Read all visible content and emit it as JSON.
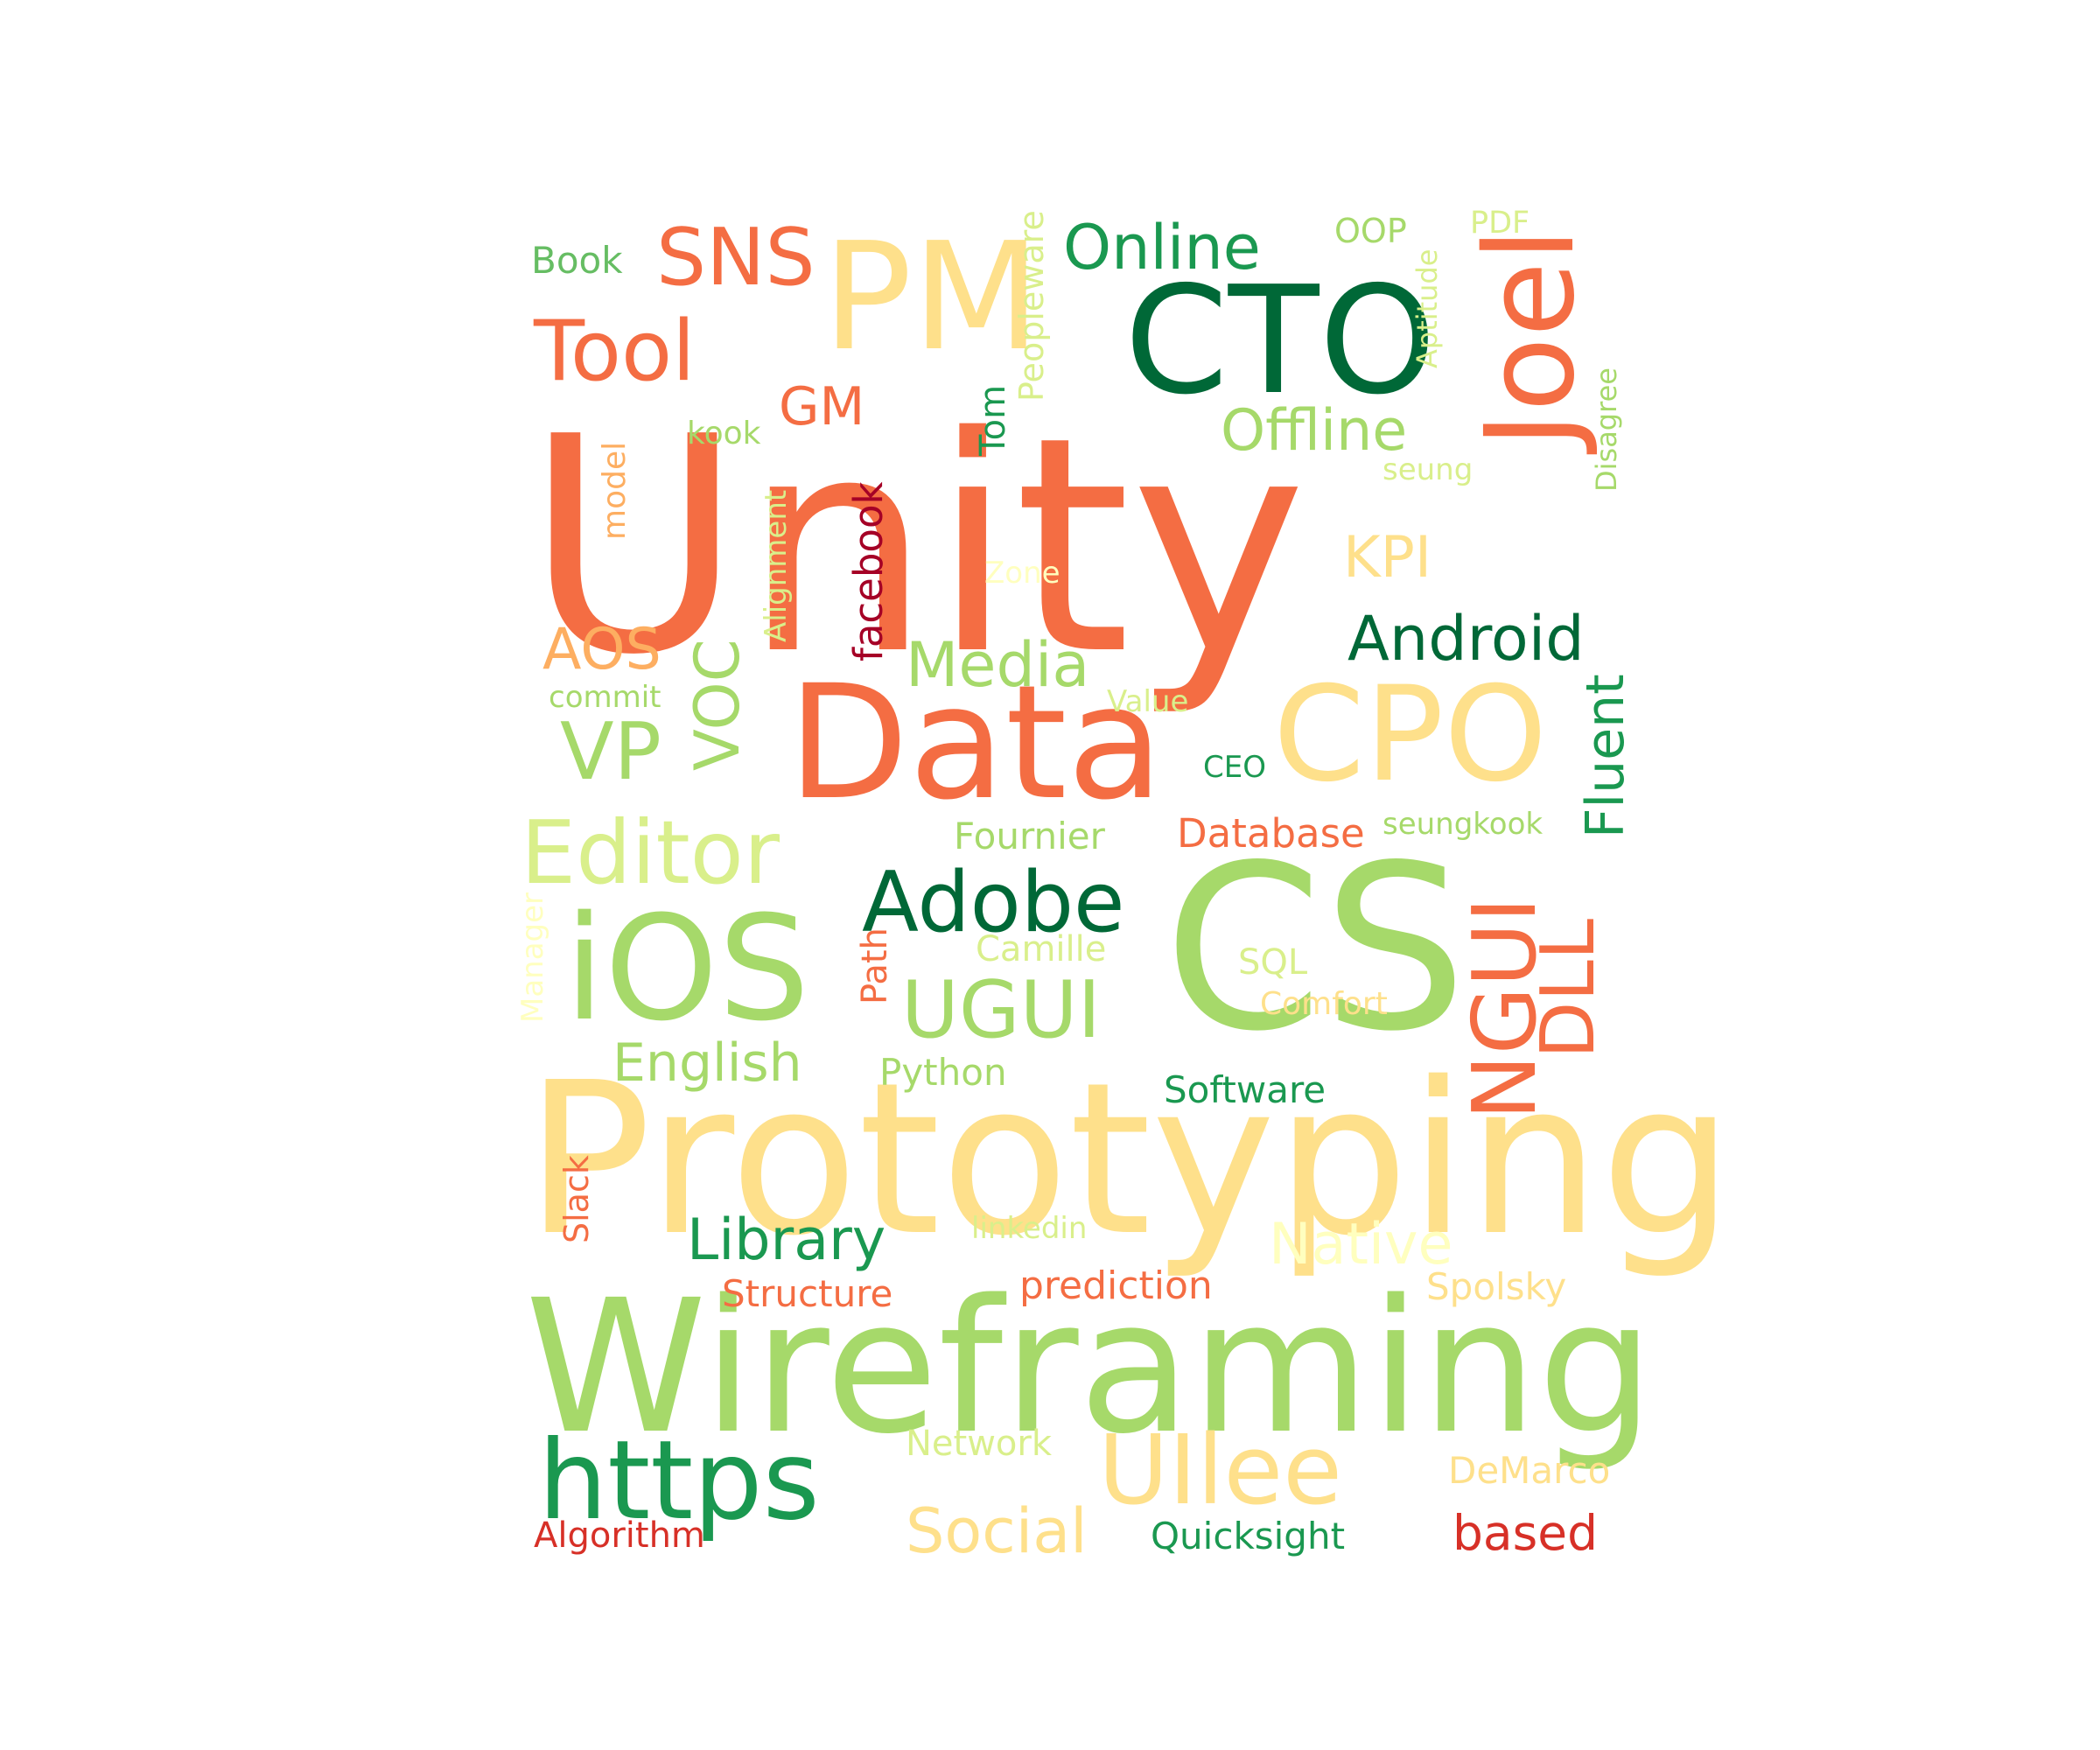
{
  "words": [
    {
      "text": "Unity",
      "color": "#f46d43"
    },
    {
      "text": "Prototyping",
      "color": "#fee08b"
    },
    {
      "text": "Wireframing",
      "color": "#a6d96a"
    },
    {
      "text": "CS",
      "color": "#a6d96a"
    },
    {
      "text": "CPO",
      "color": "#fee08b"
    },
    {
      "text": "Data",
      "color": "#f46d43"
    },
    {
      "text": "CTO",
      "color": "#006837"
    },
    {
      "text": "PM",
      "color": "#fee08b"
    },
    {
      "text": "Joel",
      "color": "#f46d43"
    },
    {
      "text": "iOS",
      "color": "#a6d96a"
    },
    {
      "text": "https",
      "color": "#1a9850"
    },
    {
      "text": "UIlee",
      "color": "#fee08b"
    },
    {
      "text": "Editor",
      "color": "#d9ef8b"
    },
    {
      "text": "Adobe",
      "color": "#006837"
    },
    {
      "text": "NGUI",
      "color": "#f46d43"
    },
    {
      "text": "UGUI",
      "color": "#a6d96a"
    },
    {
      "text": "Tool",
      "color": "#f46d43"
    },
    {
      "text": "SNS",
      "color": "#f46d43"
    },
    {
      "text": "Online",
      "color": "#1a9850"
    },
    {
      "text": "Offline",
      "color": "#a6d96a"
    },
    {
      "text": "Android",
      "color": "#006837"
    },
    {
      "text": "VOC",
      "color": "#a6d96a"
    },
    {
      "text": "VP",
      "color": "#a6d96a"
    },
    {
      "text": "Media",
      "color": "#a6d96a"
    },
    {
      "text": "Fluent",
      "color": "#1a9850"
    },
    {
      "text": "DLL",
      "color": "#f46d43"
    },
    {
      "text": "Library",
      "color": "#1a9850"
    },
    {
      "text": "Social",
      "color": "#fee08b"
    },
    {
      "text": "Native",
      "color": "#ffffbf"
    },
    {
      "text": "English",
      "color": "#a6d96a"
    },
    {
      "text": "AOS",
      "color": "#fdae61"
    },
    {
      "text": "KPI",
      "color": "#fee08b"
    },
    {
      "text": "GM",
      "color": "#f46d43"
    },
    {
      "text": "facebook",
      "color": "#a50026"
    },
    {
      "text": "Peopleware",
      "color": "#d9ef8b"
    },
    {
      "text": "Tom",
      "color": "#1a9850"
    },
    {
      "text": "Database",
      "color": "#f46d43"
    },
    {
      "text": "Software",
      "color": "#1a9850"
    },
    {
      "text": "Quicksight",
      "color": "#1a9850"
    },
    {
      "text": "based",
      "color": "#d73027"
    },
    {
      "text": "Algorithm",
      "color": "#d73027"
    },
    {
      "text": "Structure",
      "color": "#f46d43"
    },
    {
      "text": "prediction",
      "color": "#f46d43"
    },
    {
      "text": "Fournier",
      "color": "#a6d96a"
    },
    {
      "text": "Python",
      "color": "#a6d96a"
    },
    {
      "text": "Network",
      "color": "#d9ef8b"
    },
    {
      "text": "DeMarco",
      "color": "#fee08b"
    },
    {
      "text": "Spolsky",
      "color": "#fee08b"
    },
    {
      "text": "Camille",
      "color": "#d9ef8b"
    },
    {
      "text": "SQL",
      "color": "#d9ef8b"
    },
    {
      "text": "Comfort",
      "color": "#fee08b"
    },
    {
      "text": "seungkook",
      "color": "#a6d96a"
    },
    {
      "text": "CEO",
      "color": "#1a9850"
    },
    {
      "text": "Value",
      "color": "#d9ef8b"
    },
    {
      "text": "Zone",
      "color": "#ffffbf"
    },
    {
      "text": "seung",
      "color": "#d9ef8b"
    },
    {
      "text": "Aptitude",
      "color": "#d9ef8b"
    },
    {
      "text": "Disagree",
      "color": "#a6d96a"
    },
    {
      "text": "OOP",
      "color": "#a6d96a"
    },
    {
      "text": "PDF",
      "color": "#d9ef8b"
    },
    {
      "text": "Book",
      "color": "#66bd63"
    },
    {
      "text": "kook",
      "color": "#a6d96a"
    },
    {
      "text": "model",
      "color": "#fdae61"
    },
    {
      "text": "Alignment",
      "color": "#d9ef8b"
    },
    {
      "text": "commit",
      "color": "#a6d96a"
    },
    {
      "text": "Manager",
      "color": "#ffffbf"
    },
    {
      "text": "Path",
      "color": "#f46d43"
    },
    {
      "text": "Slack",
      "color": "#f46d43"
    },
    {
      "text": "linkedin",
      "color": "#d9ef8b"
    }
  ]
}
